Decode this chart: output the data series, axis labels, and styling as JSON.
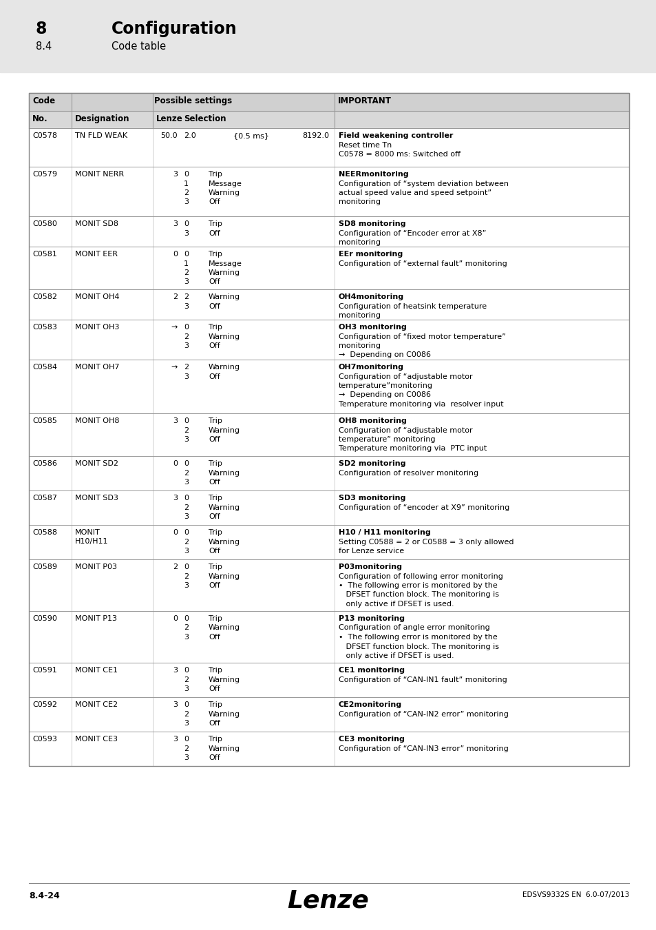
{
  "header_title": "8",
  "header_subtitle": "Configuration",
  "header_section": "8.4",
  "header_section_title": "Code table",
  "bg_color": "#e6e6e6",
  "white": "#ffffff",
  "table_header_bg": "#d0d0d0",
  "table_subheader_bg": "#d8d8d8",
  "footer_text_left": "8.4-24",
  "footer_text_center": "Lenze",
  "footer_text_right": "EDSVS9332S EN  6.0-07/2013",
  "rows": [
    {
      "code": "C0578",
      "designation": "TN FLD WEAK",
      "lenze": "50.0",
      "selection_nums": [],
      "selection_vals": [],
      "selection_special": "2.0              {0.5 ms}          8192.0",
      "important_bold": "Field weakening controller",
      "important_rest": "Reset time Tn\nC0578 = 8000 ms: Switched off"
    },
    {
      "code": "C0579",
      "designation": "MONIT NERR",
      "lenze": "3",
      "selection_nums": [
        "0",
        "1",
        "2",
        "3"
      ],
      "selection_vals": [
        "Trip",
        "Message",
        "Warning",
        "Off"
      ],
      "selection_special": "",
      "important_bold": "NEERmonitoring",
      "important_rest": "Configuration of “system deviation between\nactual speed value and speed setpoint”\nmonitoring"
    },
    {
      "code": "C0580",
      "designation": "MONIT SD8",
      "lenze": "3",
      "selection_nums": [
        "0",
        "3"
      ],
      "selection_vals": [
        "Trip",
        "Off"
      ],
      "selection_special": "",
      "important_bold": "SD8 monitoring",
      "important_rest": "Configuration of “Encoder error at X8”\nmonitoring"
    },
    {
      "code": "C0581",
      "designation": "MONIT EER",
      "lenze": "0",
      "selection_nums": [
        "0",
        "1",
        "2",
        "3"
      ],
      "selection_vals": [
        "Trip",
        "Message",
        "Warning",
        "Off"
      ],
      "selection_special": "",
      "important_bold": "EEr monitoring",
      "important_rest": "Configuration of “external fault” monitoring"
    },
    {
      "code": "C0582",
      "designation": "MONIT OH4",
      "lenze": "2",
      "selection_nums": [
        "2",
        "3"
      ],
      "selection_vals": [
        "Warning",
        "Off"
      ],
      "selection_special": "",
      "important_bold": "OH4monitoring",
      "important_rest": "Configuration of heatsink temperature\nmonitoring"
    },
    {
      "code": "C0583",
      "designation": "MONIT OH3",
      "lenze": "→",
      "selection_nums": [
        "0",
        "2",
        "3"
      ],
      "selection_vals": [
        "Trip",
        "Warning",
        "Off"
      ],
      "selection_special": "",
      "important_bold": "OH3 monitoring",
      "important_rest": "Configuration of “fixed motor temperature”\nmonitoring\n→  Depending on C0086"
    },
    {
      "code": "C0584",
      "designation": "MONIT OH7",
      "lenze": "→",
      "selection_nums": [
        "2",
        "3"
      ],
      "selection_vals": [
        "Warning",
        "Off"
      ],
      "selection_special": "",
      "important_bold": "OH7monitoring",
      "important_rest": "Configuration of “adjustable motor\ntemperature”monitoring\n→  Depending on C0086\nTemperature monitoring via  resolver input"
    },
    {
      "code": "C0585",
      "designation": "MONIT OH8",
      "lenze": "3",
      "selection_nums": [
        "0",
        "2",
        "3"
      ],
      "selection_vals": [
        "Trip",
        "Warning",
        "Off"
      ],
      "selection_special": "",
      "important_bold": "OH8 monitoring",
      "important_rest": "Configuration of “adjustable motor\ntemperature” monitoring\nTemperature monitoring via  PTC input"
    },
    {
      "code": "C0586",
      "designation": "MONIT SD2",
      "lenze": "0",
      "selection_nums": [
        "0",
        "2",
        "3"
      ],
      "selection_vals": [
        "Trip",
        "Warning",
        "Off"
      ],
      "selection_special": "",
      "important_bold": "SD2 monitoring",
      "important_rest": "Configuration of resolver monitoring"
    },
    {
      "code": "C0587",
      "designation": "MONIT SD3",
      "lenze": "3",
      "selection_nums": [
        "0",
        "2",
        "3"
      ],
      "selection_vals": [
        "Trip",
        "Warning",
        "Off"
      ],
      "selection_special": "",
      "important_bold": "SD3 monitoring",
      "important_rest": "Configuration of “encoder at X9” monitoring"
    },
    {
      "code": "C0588",
      "designation": "MONIT\nH10/H11",
      "lenze": "0",
      "selection_nums": [
        "0",
        "2",
        "3"
      ],
      "selection_vals": [
        "Trip",
        "Warning",
        "Off"
      ],
      "selection_special": "",
      "important_bold": "H10 / H11 monitoring",
      "important_rest": "Setting C0588 = 2 or C0588 = 3 only allowed\nfor Lenze service"
    },
    {
      "code": "C0589",
      "designation": "MONIT P03",
      "lenze": "2",
      "selection_nums": [
        "0",
        "2",
        "3"
      ],
      "selection_vals": [
        "Trip",
        "Warning",
        "Off"
      ],
      "selection_special": "",
      "important_bold": "P03monitoring",
      "important_rest": "Configuration of following error monitoring\n•  The following error is monitored by the\n   DFSET function block. The monitoring is\n   only active if DFSET is used."
    },
    {
      "code": "C0590",
      "designation": "MONIT P13",
      "lenze": "0",
      "selection_nums": [
        "0",
        "2",
        "3"
      ],
      "selection_vals": [
        "Trip",
        "Warning",
        "Off"
      ],
      "selection_special": "",
      "important_bold": "P13 monitoring",
      "important_rest": "Configuration of angle error monitoring\n•  The following error is monitored by the\n   DFSET function block. The monitoring is\n   only active if DFSET is used."
    },
    {
      "code": "C0591",
      "designation": "MONIT CE1",
      "lenze": "3",
      "selection_nums": [
        "0",
        "2",
        "3"
      ],
      "selection_vals": [
        "Trip",
        "Warning",
        "Off"
      ],
      "selection_special": "",
      "important_bold": "CE1 monitoring",
      "important_rest": "Configuration of “CAN-IN1 fault” monitoring"
    },
    {
      "code": "C0592",
      "designation": "MONIT CE2",
      "lenze": "3",
      "selection_nums": [
        "0",
        "2",
        "3"
      ],
      "selection_vals": [
        "Trip",
        "Warning",
        "Off"
      ],
      "selection_special": "",
      "important_bold": "CE2monitoring",
      "important_rest": "Configuration of “CAN-IN2 error” monitoring"
    },
    {
      "code": "C0593",
      "designation": "MONIT CE3",
      "lenze": "3",
      "selection_nums": [
        "0",
        "2",
        "3"
      ],
      "selection_vals": [
        "Trip",
        "Warning",
        "Off"
      ],
      "selection_special": "",
      "important_bold": "CE3 monitoring",
      "important_rest": "Configuration of “CAN-IN3 error” monitoring"
    }
  ]
}
